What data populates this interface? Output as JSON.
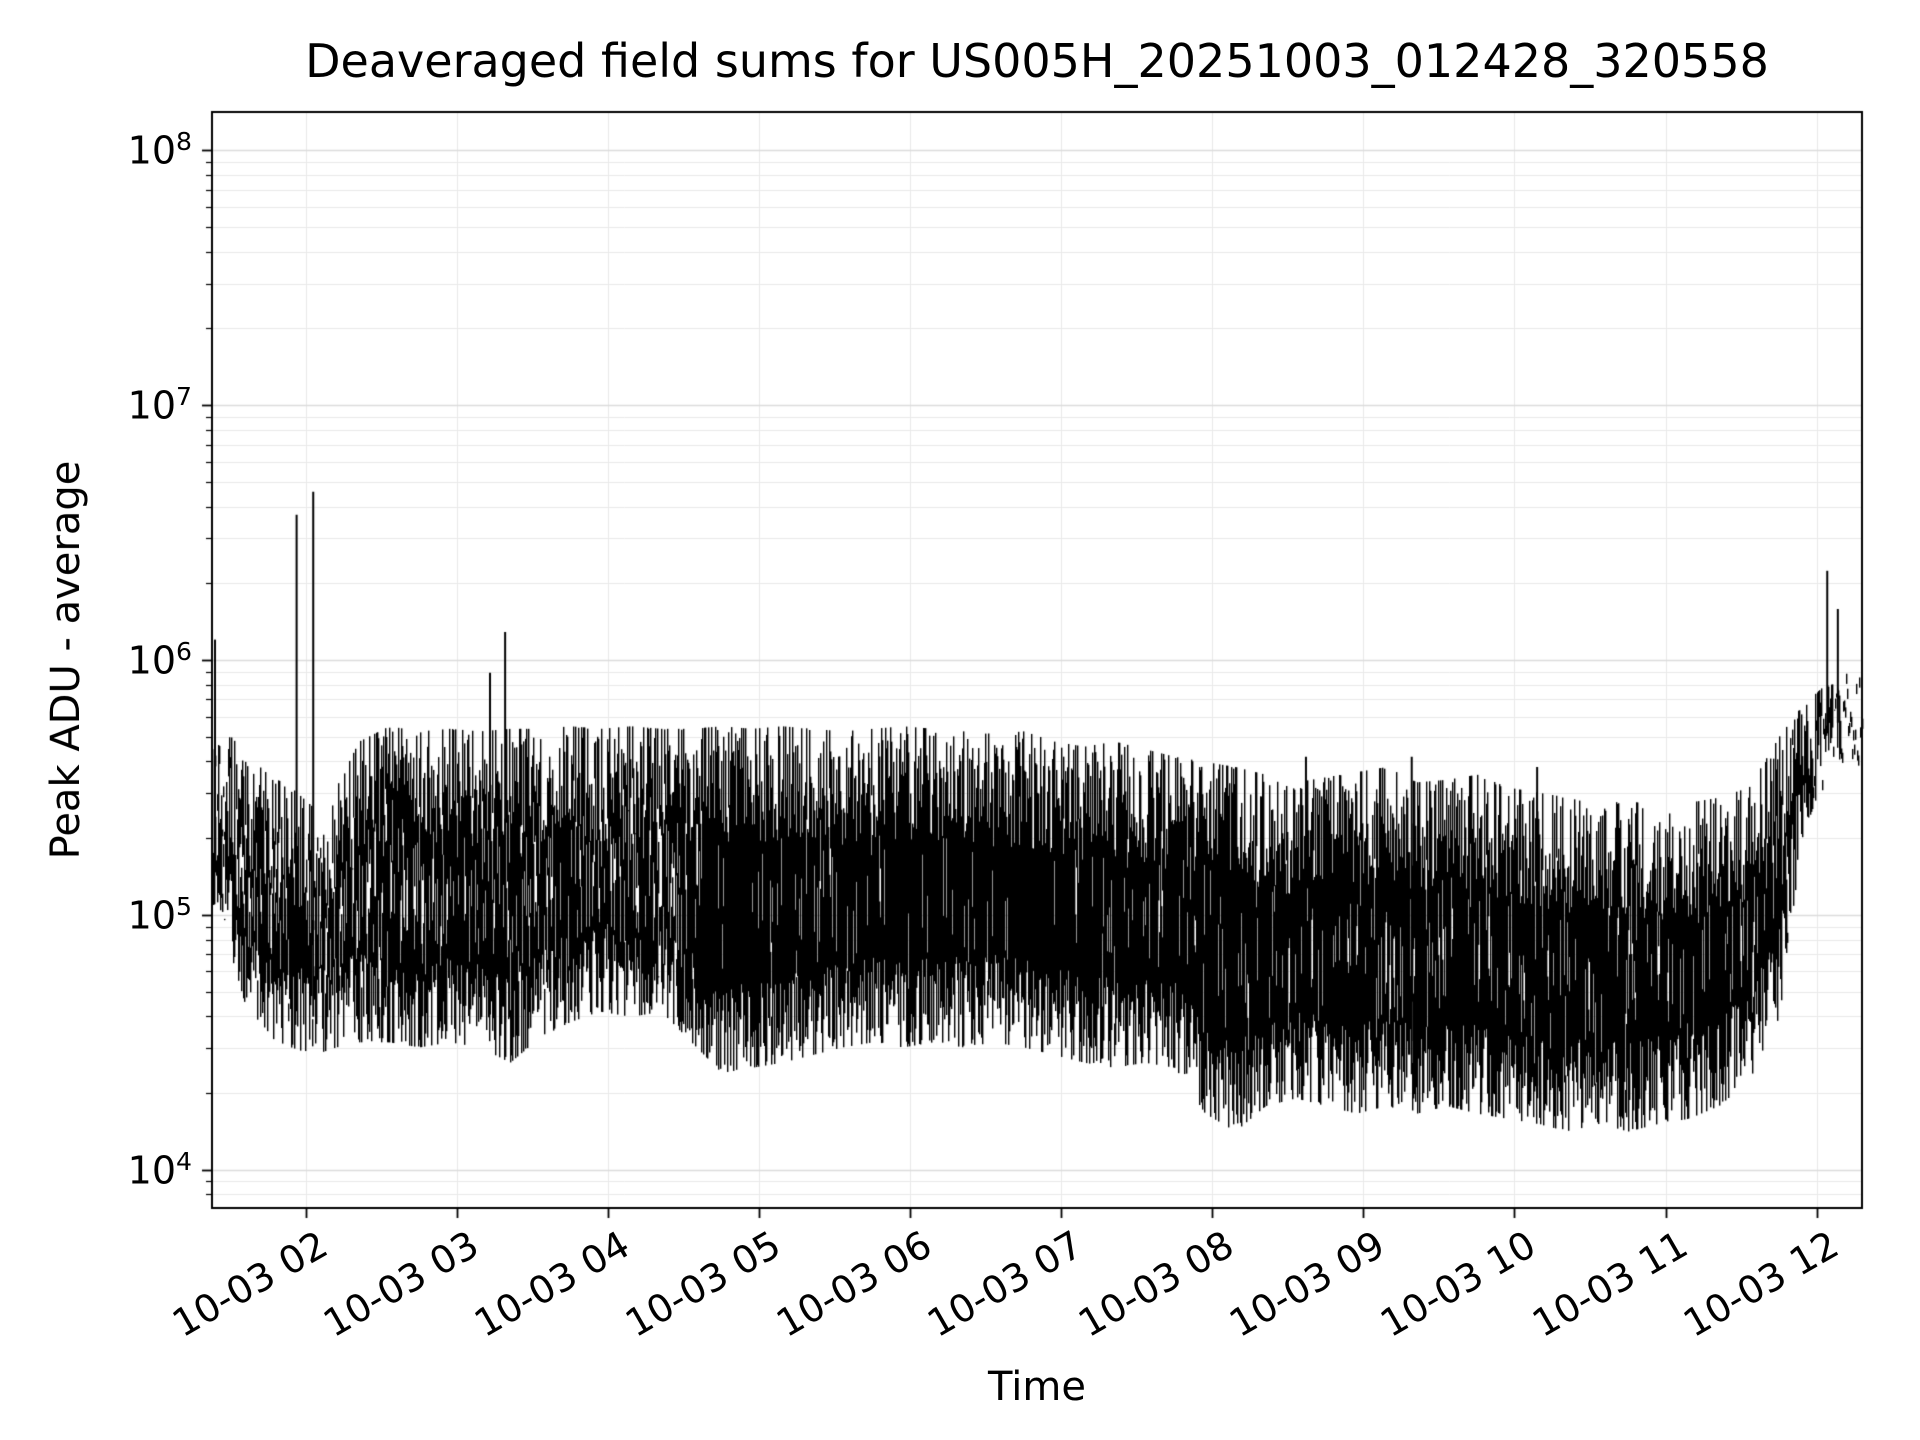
{
  "figure": {
    "background": "#ffffff"
  },
  "chart_data": {
    "type": "line",
    "title": "Deaveraged field sums for US005H_20251003_012428_320558",
    "xlabel": "Time",
    "ylabel": "Peak ADU - average",
    "y_scale": "log",
    "y_tick_base": "10",
    "y_tick_exponents": [
      "4",
      "5",
      "6",
      "7",
      "8"
    ],
    "ylim_log10": [
      3.85,
      8.15
    ],
    "x_tick_labels": [
      "10-03 02",
      "10-03 03",
      "10-03 04",
      "10-03 05",
      "10-03 06",
      "10-03 07",
      "10-03 08",
      "10-03 09",
      "10-03 10",
      "10-03 11",
      "10-03 12"
    ],
    "x_tick_hours": [
      2,
      3,
      4,
      5,
      6,
      7,
      8,
      9,
      10,
      11,
      12
    ],
    "x_domain_hours": [
      1.38,
      12.3
    ],
    "grid": true,
    "line_color": "#000000",
    "grid_minor_color": "#e9e9e9",
    "grid_major_color": "#dcdcdc",
    "axis_color": "#000000",
    "series_description": "Dense noisy log-scale time series; envelope sampled as [hour-of-day, log10 lower bound ADU, log10 upper bound ADU]",
    "envelope_log10": [
      [
        1.38,
        5.05,
        5.65
      ],
      [
        1.5,
        4.85,
        5.7
      ],
      [
        1.62,
        4.6,
        5.62
      ],
      [
        1.75,
        4.52,
        5.55
      ],
      [
        1.9,
        4.48,
        5.5
      ],
      [
        2.05,
        4.45,
        5.42
      ],
      [
        2.2,
        4.48,
        5.5
      ],
      [
        2.35,
        4.5,
        5.68
      ],
      [
        2.55,
        4.5,
        5.74
      ],
      [
        2.75,
        4.48,
        5.72
      ],
      [
        2.95,
        4.5,
        5.73
      ],
      [
        3.15,
        4.48,
        5.72
      ],
      [
        3.35,
        4.42,
        5.73
      ],
      [
        3.55,
        4.52,
        5.73
      ],
      [
        3.75,
        4.58,
        5.74
      ],
      [
        3.95,
        4.62,
        5.73
      ],
      [
        4.15,
        4.6,
        5.74
      ],
      [
        4.35,
        4.62,
        5.73
      ],
      [
        4.55,
        4.5,
        5.73
      ],
      [
        4.75,
        4.38,
        5.74
      ],
      [
        4.95,
        4.4,
        5.73
      ],
      [
        5.15,
        4.42,
        5.74
      ],
      [
        5.35,
        4.45,
        5.73
      ],
      [
        5.55,
        4.48,
        5.72
      ],
      [
        5.75,
        4.5,
        5.73
      ],
      [
        5.95,
        4.48,
        5.74
      ],
      [
        6.15,
        4.5,
        5.73
      ],
      [
        6.35,
        4.48,
        5.72
      ],
      [
        6.55,
        4.5,
        5.71
      ],
      [
        6.75,
        4.48,
        5.72
      ],
      [
        6.95,
        4.45,
        5.68
      ],
      [
        7.15,
        4.42,
        5.66
      ],
      [
        7.35,
        4.4,
        5.68
      ],
      [
        7.55,
        4.42,
        5.65
      ],
      [
        7.75,
        4.4,
        5.62
      ],
      [
        7.95,
        4.22,
        5.6
      ],
      [
        8.15,
        4.15,
        5.58
      ],
      [
        8.35,
        4.25,
        5.55
      ],
      [
        8.55,
        4.28,
        5.52
      ],
      [
        8.75,
        4.25,
        5.54
      ],
      [
        8.95,
        4.22,
        5.56
      ],
      [
        9.15,
        4.25,
        5.58
      ],
      [
        9.35,
        4.22,
        5.52
      ],
      [
        9.55,
        4.25,
        5.53
      ],
      [
        9.75,
        4.22,
        5.55
      ],
      [
        9.95,
        4.2,
        5.5
      ],
      [
        10.15,
        4.18,
        5.48
      ],
      [
        10.35,
        4.15,
        5.46
      ],
      [
        10.55,
        4.18,
        5.43
      ],
      [
        10.75,
        4.15,
        5.45
      ],
      [
        10.95,
        4.18,
        5.42
      ],
      [
        11.15,
        4.2,
        5.44
      ],
      [
        11.35,
        4.25,
        5.46
      ],
      [
        11.55,
        4.35,
        5.5
      ],
      [
        11.75,
        4.6,
        5.7
      ],
      [
        11.9,
        5.3,
        5.82
      ],
      [
        12.05,
        5.55,
        5.9
      ],
      [
        12.3,
        5.7,
        5.92
      ]
    ],
    "spikes_log10": [
      [
        1.4,
        6.08
      ],
      [
        1.94,
        6.57
      ],
      [
        2.05,
        6.66
      ],
      [
        3.22,
        5.95
      ],
      [
        3.32,
        6.11
      ],
      [
        8.62,
        5.62
      ],
      [
        9.32,
        5.62
      ],
      [
        10.15,
        5.58
      ],
      [
        12.07,
        6.35
      ],
      [
        12.14,
        6.2
      ]
    ]
  }
}
